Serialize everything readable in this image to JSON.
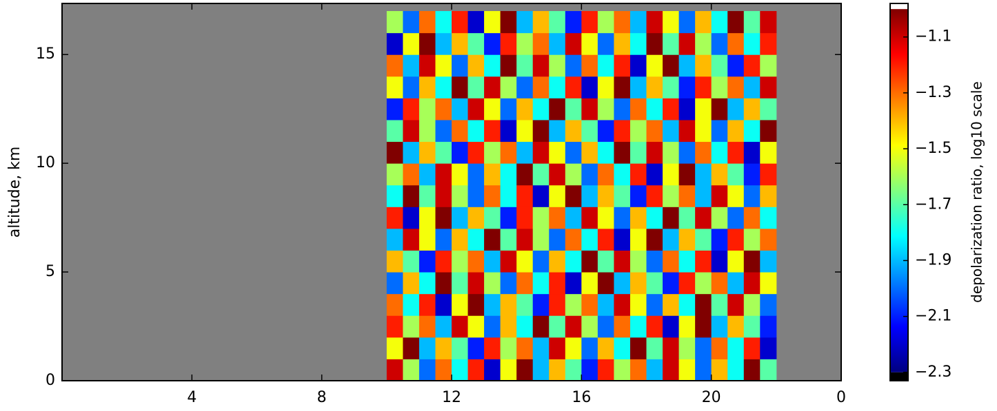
{
  "chart_data": {
    "type": "heatmap",
    "ylabel": "altitude, km",
    "colorbar_label": "depolarization ratio, log10 scale",
    "colormap": "jet",
    "background": "#808080",
    "under_color": "#000000",
    "over_color": "#ffffff",
    "xlim": [
      0,
      24
    ],
    "xticks": [
      4,
      8,
      12,
      16,
      20,
      {
        "value": 24,
        "label": "0"
      }
    ],
    "ylim": [
      0,
      17.35
    ],
    "yticks": [
      0,
      5,
      10,
      15
    ],
    "clim": [
      -2.3,
      -1.0
    ],
    "colorbar_lim": [
      -2.33,
      -0.98
    ],
    "cticks": [
      {
        "value": -2.3,
        "label": "−2.3"
      },
      {
        "value": -2.1,
        "label": "−2.1"
      },
      {
        "value": -1.9,
        "label": "−1.9"
      },
      {
        "value": -1.7,
        "label": "−1.7"
      },
      {
        "value": -1.5,
        "label": "−1.5"
      },
      {
        "value": -1.3,
        "label": "−1.3"
      },
      {
        "value": -1.1,
        "label": "−1.1"
      }
    ],
    "x_bins": [
      10.0,
      10.5,
      11.0,
      11.5,
      12.0,
      12.5,
      13.0,
      13.5,
      14.0,
      14.5,
      15.0,
      15.5,
      16.0,
      16.5,
      17.0,
      17.5,
      18.0,
      18.5,
      19.0,
      19.5,
      20.0,
      20.5,
      21.0,
      21.5,
      22.0
    ],
    "y_bins": [
      0,
      1,
      2,
      3,
      4,
      5,
      6,
      7,
      8,
      9,
      10,
      11,
      12,
      13,
      14,
      15,
      16,
      17
    ],
    "z": [
      [
        -1.1,
        -1.6,
        -2.0,
        -1.3,
        -1.8,
        -1.2,
        -2.2,
        -1.5,
        -1.0,
        -1.9,
        -1.4,
        -1.7,
        -2.1,
        -1.2,
        -1.6,
        -1.3,
        -1.9,
        -1.1,
        -1.5,
        -2.0,
        -1.4,
        -1.8,
        -1.0,
        -1.7
      ],
      [
        -1.5,
        -1.0,
        -1.9,
        -1.4,
        -1.7,
        -2.1,
        -1.2,
        -1.6,
        -1.3,
        -1.9,
        -1.1,
        -1.5,
        -2.0,
        -1.4,
        -1.8,
        -1.0,
        -1.7,
        -1.1,
        -1.6,
        -2.0,
        -1.3,
        -1.8,
        -1.2,
        -2.2
      ],
      [
        -1.2,
        -1.6,
        -1.3,
        -1.9,
        -1.1,
        -1.5,
        -2.0,
        -1.4,
        -1.8,
        -1.0,
        -1.7,
        -1.1,
        -1.6,
        -2.0,
        -1.3,
        -1.8,
        -1.2,
        -2.2,
        -1.5,
        -1.0,
        -1.9,
        -1.4,
        -1.7,
        -2.1
      ],
      [
        -1.3,
        -1.8,
        -1.2,
        -2.2,
        -1.5,
        -1.0,
        -1.9,
        -1.4,
        -1.7,
        -2.1,
        -1.2,
        -1.6,
        -1.3,
        -1.9,
        -1.1,
        -1.5,
        -2.0,
        -1.4,
        -1.8,
        -1.0,
        -1.7,
        -1.1,
        -1.6,
        -2.0
      ],
      [
        -2.0,
        -1.4,
        -1.8,
        -1.0,
        -1.7,
        -1.1,
        -1.6,
        -2.0,
        -1.3,
        -1.8,
        -1.2,
        -2.2,
        -1.5,
        -1.0,
        -1.9,
        -1.4,
        -1.7,
        -2.1,
        -1.2,
        -1.6,
        -1.3,
        -1.9,
        -1.1,
        -1.5
      ],
      [
        -1.4,
        -1.7,
        -2.1,
        -1.2,
        -1.6,
        -1.3,
        -1.9,
        -1.1,
        -1.5,
        -2.0,
        -1.4,
        -1.8,
        -1.0,
        -1.7,
        -1.1,
        -1.6,
        -2.0,
        -1.3,
        -1.8,
        -1.2,
        -2.2,
        -1.5,
        -1.0,
        -1.9
      ],
      [
        -1.9,
        -1.1,
        -1.5,
        -2.0,
        -1.4,
        -1.8,
        -1.0,
        -1.7,
        -1.1,
        -1.6,
        -2.0,
        -1.3,
        -1.8,
        -1.2,
        -2.2,
        -1.5,
        -1.0,
        -1.9,
        -1.4,
        -1.7,
        -2.1,
        -1.2,
        -1.6,
        -1.3
      ],
      [
        -1.2,
        -2.2,
        -1.5,
        -1.0,
        -1.9,
        -1.4,
        -1.7,
        -2.1,
        -1.2,
        -1.6,
        -1.3,
        -1.9,
        -1.1,
        -1.5,
        -2.0,
        -1.4,
        -1.8,
        -1.0,
        -1.7,
        -1.1,
        -1.6,
        -2.0,
        -1.3,
        -1.8
      ],
      [
        -1.8,
        -1.0,
        -1.7,
        -1.1,
        -1.6,
        -2.0,
        -1.3,
        -1.8,
        -1.2,
        -2.2,
        -1.5,
        -1.0,
        -1.9,
        -1.4,
        -1.7,
        -2.1,
        -1.2,
        -1.6,
        -1.3,
        -1.9,
        -1.1,
        -1.5,
        -2.0,
        -1.4
      ],
      [
        -1.6,
        -1.3,
        -1.9,
        -1.1,
        -1.5,
        -2.0,
        -1.4,
        -1.8,
        -1.0,
        -1.7,
        -1.1,
        -1.6,
        -2.0,
        -1.3,
        -1.8,
        -1.2,
        -2.2,
        -1.5,
        -1.0,
        -1.9,
        -1.4,
        -1.7,
        -2.1,
        -1.2
      ],
      [
        -1.0,
        -1.9,
        -1.4,
        -1.7,
        -2.1,
        -1.2,
        -1.6,
        -1.3,
        -1.9,
        -1.1,
        -1.5,
        -2.0,
        -1.4,
        -1.8,
        -1.0,
        -1.7,
        -1.1,
        -1.6,
        -2.0,
        -1.3,
        -1.8,
        -1.2,
        -2.2,
        -1.5
      ],
      [
        -1.7,
        -1.1,
        -1.6,
        -2.0,
        -1.3,
        -1.8,
        -1.2,
        -2.2,
        -1.5,
        -1.0,
        -1.9,
        -1.4,
        -1.7,
        -2.1,
        -1.2,
        -1.6,
        -1.3,
        -1.9,
        -1.1,
        -1.5,
        -2.0,
        -1.4,
        -1.8,
        -1.0
      ],
      [
        -2.1,
        -1.2,
        -1.6,
        -1.3,
        -1.9,
        -1.1,
        -1.5,
        -2.0,
        -1.4,
        -1.8,
        -1.0,
        -1.7,
        -1.1,
        -1.6,
        -2.0,
        -1.3,
        -1.8,
        -1.2,
        -2.2,
        -1.5,
        -1.0,
        -1.9,
        -1.4,
        -1.7
      ],
      [
        -1.5,
        -2.0,
        -1.4,
        -1.8,
        -1.0,
        -1.7,
        -1.1,
        -1.6,
        -2.0,
        -1.3,
        -1.8,
        -1.2,
        -2.2,
        -1.5,
        -1.0,
        -1.9,
        -1.4,
        -1.7,
        -2.1,
        -1.2,
        -1.6,
        -1.3,
        -1.9,
        -1.1
      ],
      [
        -1.3,
        -1.9,
        -1.1,
        -1.5,
        -2.0,
        -1.4,
        -1.8,
        -1.0,
        -1.7,
        -1.1,
        -1.6,
        -2.0,
        -1.3,
        -1.8,
        -1.2,
        -2.2,
        -1.5,
        -1.0,
        -1.9,
        -1.4,
        -1.7,
        -2.1,
        -1.2,
        -1.6
      ],
      [
        -2.2,
        -1.5,
        -1.0,
        -1.9,
        -1.4,
        -1.7,
        -2.1,
        -1.2,
        -1.6,
        -1.3,
        -1.9,
        -1.1,
        -1.5,
        -2.0,
        -1.4,
        -1.8,
        -1.0,
        -1.7,
        -1.1,
        -1.6,
        -2.0,
        -1.3,
        -1.8,
        -1.2
      ],
      [
        -1.6,
        -2.0,
        -1.3,
        -1.8,
        -1.2,
        -2.2,
        -1.5,
        -1.0,
        -1.9,
        -1.4,
        -1.7,
        -2.1,
        -1.2,
        -1.6,
        -1.3,
        -1.9,
        -1.1,
        -1.5,
        -2.0,
        -1.4,
        -1.8,
        -1.0,
        -1.7,
        -1.1
      ]
    ]
  }
}
